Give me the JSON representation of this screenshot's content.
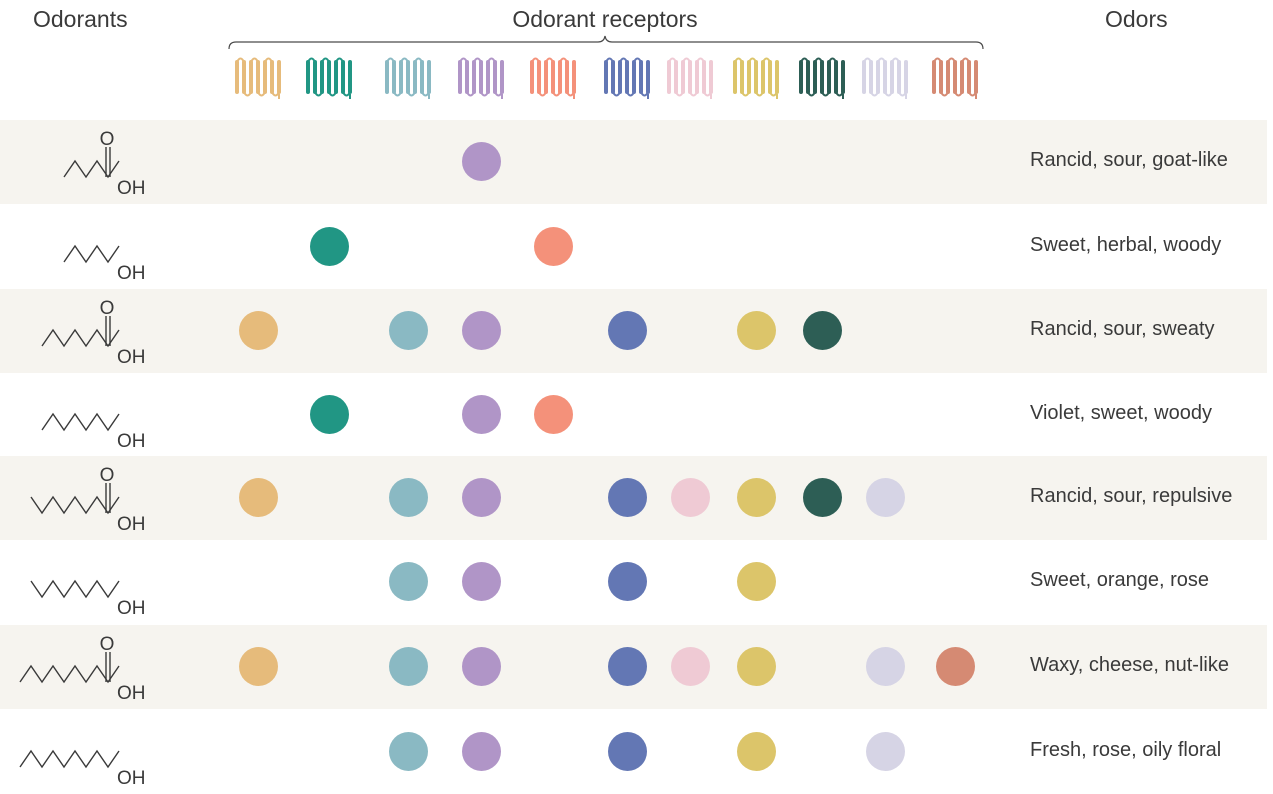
{
  "headers": {
    "odorants": "Odorants",
    "receptors": "Odorant receptors",
    "odors": "Odors"
  },
  "receptor_colors": [
    "#e6bb7b",
    "#219684",
    "#8ab9c3",
    "#b095c7",
    "#f4917a",
    "#6377b4",
    "#efcad4",
    "#dcc56a",
    "#2d5e55",
    "#d6d4e5",
    "#d58a73"
  ],
  "labels": {
    "oxygen": "O",
    "hydroxyl": "OH"
  },
  "rows": [
    {
      "acid": true,
      "carbons": 5,
      "odor": "Rancid, sour, goat-like",
      "receptors": [
        4
      ]
    },
    {
      "acid": false,
      "carbons": 5,
      "odor": "Sweet, herbal, woody",
      "receptors": [
        2,
        5
      ]
    },
    {
      "acid": true,
      "carbons": 7,
      "odor": "Rancid, sour, sweaty",
      "receptors": [
        1,
        3,
        4,
        6,
        8,
        9
      ]
    },
    {
      "acid": false,
      "carbons": 7,
      "odor": "Violet, sweet, woody",
      "receptors": [
        2,
        4,
        5
      ]
    },
    {
      "acid": true,
      "carbons": 8,
      "odor": "Rancid, sour, repulsive",
      "receptors": [
        1,
        3,
        4,
        6,
        7,
        8,
        9,
        10
      ]
    },
    {
      "acid": false,
      "carbons": 8,
      "odor": "Sweet, orange, rose",
      "receptors": [
        3,
        4,
        6,
        8
      ]
    },
    {
      "acid": true,
      "carbons": 9,
      "odor": "Waxy, cheese, nut-like",
      "receptors": [
        1,
        3,
        4,
        6,
        7,
        8,
        10,
        11
      ]
    },
    {
      "acid": false,
      "carbons": 9,
      "odor": "Fresh, rose, oily floral",
      "receptors": [
        3,
        4,
        6,
        8,
        10
      ]
    }
  ]
}
